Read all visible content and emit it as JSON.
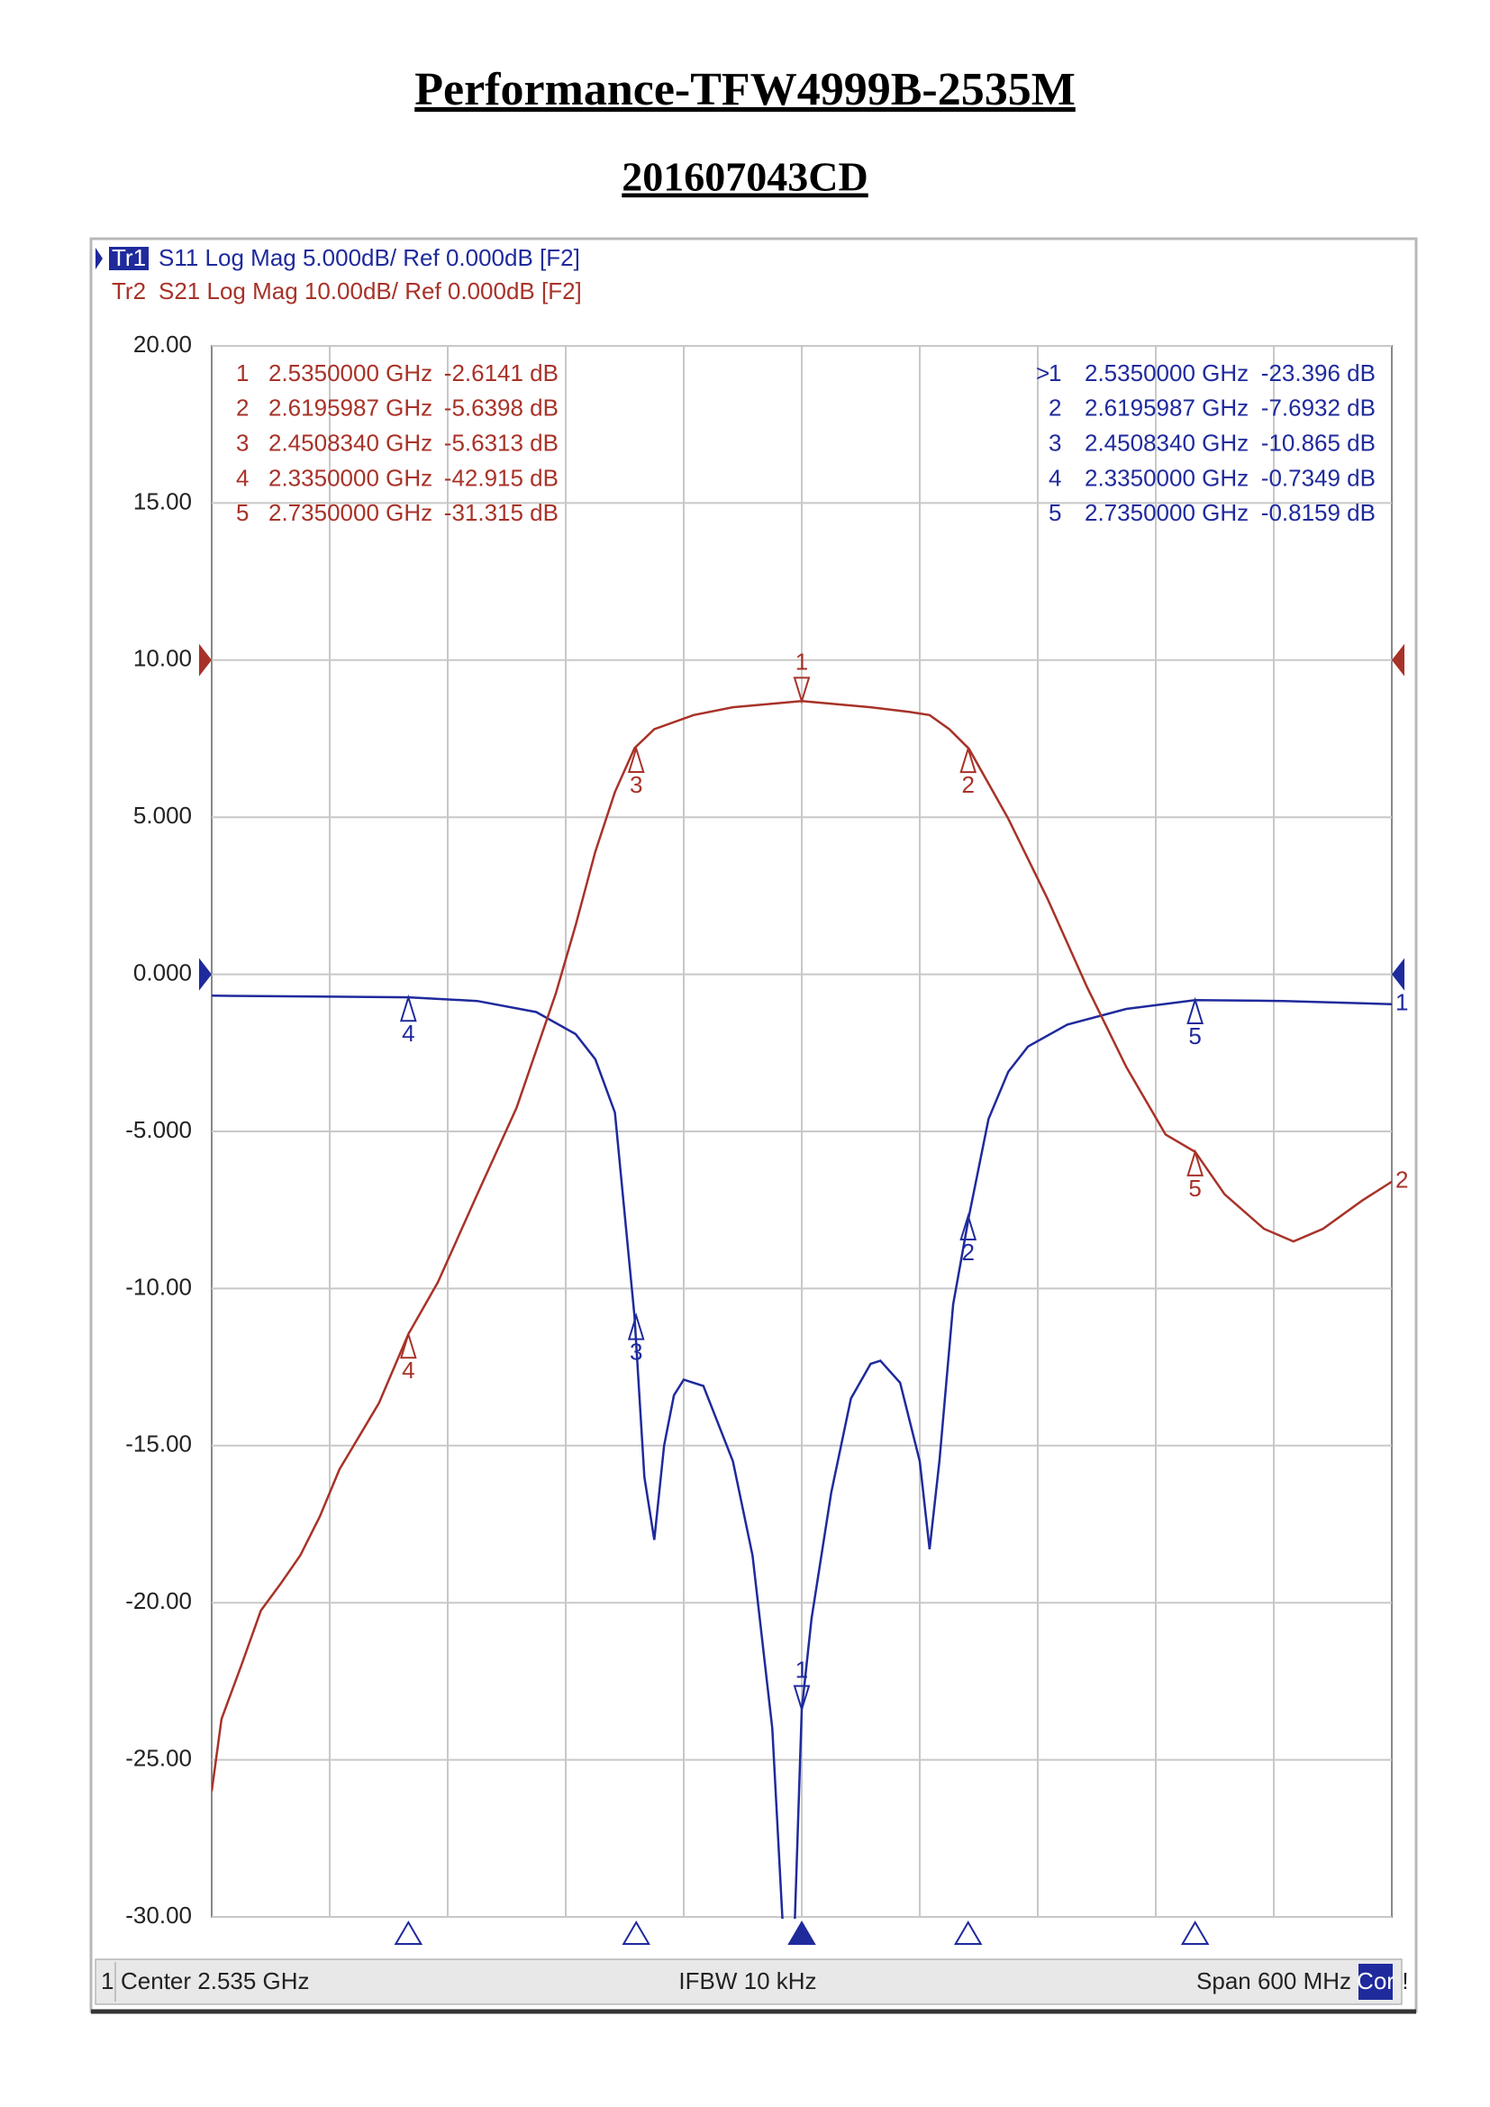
{
  "header": {
    "title": "Performance-TFW4999B-2535M",
    "subtitle": "201607043CD"
  },
  "chart_data": {
    "type": "line",
    "traces": [
      {
        "id": "Tr1",
        "text": "S11 Log Mag 5.000dB/ Ref 0.000dB [F2]"
      },
      {
        "id": "Tr2",
        "text": "S21 Log Mag 10.00dB/ Ref 0.000dB [F2]"
      }
    ],
    "xlim": [
      2.235,
      2.835
    ],
    "ylim": [
      -30,
      20
    ],
    "y2lim": [
      -80,
      20
    ],
    "yticks": [
      {
        "value": 20,
        "label": "20.00"
      },
      {
        "value": 15,
        "label": "15.00"
      },
      {
        "value": 10,
        "label": "10.00"
      },
      {
        "value": 5,
        "label": "5.000"
      },
      {
        "value": 0,
        "label": "0.000"
      },
      {
        "value": -5,
        "label": "-5.000"
      },
      {
        "value": -10,
        "label": "-10.00"
      },
      {
        "value": -15,
        "label": "-15.00"
      },
      {
        "value": -20,
        "label": "-20.00"
      },
      {
        "value": -25,
        "label": "-25.00"
      },
      {
        "value": -30,
        "label": "-30.00"
      }
    ],
    "grid": true,
    "series": [
      {
        "name": "S11",
        "trace_label": "1",
        "color": "#1f2a9c",
        "ref": 0,
        "x": [
          2.235,
          2.335,
          2.37,
          2.4,
          2.42,
          2.43,
          2.44,
          2.45,
          2.455,
          2.46,
          2.465,
          2.47,
          2.475,
          2.485,
          2.5,
          2.51,
          2.52,
          2.526,
          2.531,
          2.535,
          2.54,
          2.55,
          2.56,
          2.57,
          2.575,
          2.585,
          2.595,
          2.6,
          2.605,
          2.612,
          2.62,
          2.63,
          2.64,
          2.65,
          2.67,
          2.7,
          2.735,
          2.78,
          2.835
        ],
        "values": [
          -0.68,
          -0.73,
          -0.85,
          -1.2,
          -1.9,
          -2.7,
          -4.4,
          -10.9,
          -16,
          -18.0,
          -15,
          -13.4,
          -12.9,
          -13.1,
          -15.5,
          -18.5,
          -24,
          -31,
          -31,
          -23.4,
          -20.5,
          -16.5,
          -13.5,
          -12.4,
          -12.3,
          -13,
          -15.5,
          -18.3,
          -15.5,
          -10.5,
          -7.7,
          -4.6,
          -3.1,
          -2.3,
          -1.6,
          -1.1,
          -0.82,
          -0.85,
          -0.95
        ],
        "active_prefix": ">",
        "markers": [
          {
            "id": "1",
            "x": 2.535,
            "x_label": "2.5350000 GHz",
            "value": -23.396,
            "value_label": "-23.396 dB"
          },
          {
            "id": "2",
            "x": 2.6195987,
            "x_label": "2.6195987 GHz",
            "value": -7.6932,
            "value_label": "-7.6932 dB"
          },
          {
            "id": "3",
            "x": 2.450834,
            "x_label": "2.4508340 GHz",
            "value": -10.865,
            "value_label": "-10.865 dB"
          },
          {
            "id": "4",
            "x": 2.335,
            "x_label": "2.3350000 GHz",
            "value": -0.7349,
            "value_label": "-0.7349 dB"
          },
          {
            "id": "5",
            "x": 2.735,
            "x_label": "2.7350000 GHz",
            "value": -0.8159,
            "value_label": "-0.8159 dB"
          }
        ]
      },
      {
        "name": "S21",
        "trace_label": "2",
        "color": "#a83228",
        "axis": "y2",
        "ref": 0,
        "x": [
          2.235,
          2.24,
          2.25,
          2.26,
          2.27,
          2.28,
          2.29,
          2.3,
          2.31,
          2.32,
          2.335,
          2.35,
          2.37,
          2.39,
          2.41,
          2.42,
          2.43,
          2.44,
          2.45,
          2.46,
          2.48,
          2.5,
          2.535,
          2.57,
          2.59,
          2.6,
          2.61,
          2.62,
          2.64,
          2.66,
          2.68,
          2.7,
          2.72,
          2.735,
          2.75,
          2.77,
          2.785,
          2.8,
          2.82,
          2.835
        ],
        "values": [
          -72,
          -67.4,
          -64,
          -60.5,
          -58.8,
          -57,
          -54.5,
          -51.5,
          -49.4,
          -47.3,
          -42.9,
          -39.6,
          -34,
          -28.5,
          -21.2,
          -16.9,
          -12.2,
          -8.4,
          -5.6,
          -4.4,
          -3.5,
          -3.0,
          -2.61,
          -3.0,
          -3.3,
          -3.5,
          -4.4,
          -5.64,
          -10.1,
          -15.2,
          -20.8,
          -25.9,
          -30.2,
          -31.3,
          -34,
          -36.2,
          -37,
          -36.2,
          -34.4,
          -33.2
        ],
        "markers": [
          {
            "id": "1",
            "x": 2.535,
            "x_label": "2.5350000 GHz",
            "value": -2.6141,
            "value_label": "-2.6141 dB"
          },
          {
            "id": "2",
            "x": 2.6195987,
            "x_label": "2.6195987 GHz",
            "value": -5.6398,
            "value_label": "-5.6398 dB"
          },
          {
            "id": "3",
            "x": 2.450834,
            "x_label": "2.4508340 GHz",
            "value": -5.6313,
            "value_label": "-5.6313 dB"
          },
          {
            "id": "4",
            "x": 2.335,
            "x_label": "2.3350000 GHz",
            "value": -42.915,
            "value_label": "-42.915 dB"
          },
          {
            "id": "5",
            "x": 2.735,
            "x_label": "2.7350000 GHz",
            "value": -31.315,
            "value_label": "-31.315 dB"
          }
        ]
      }
    ],
    "footer": {
      "channel": "1",
      "center": "Center 2.535 GHz",
      "ifbw": "IFBW 10 kHz",
      "span": "Span 600 MHz",
      "cor": "Cor",
      "status": "!"
    }
  }
}
